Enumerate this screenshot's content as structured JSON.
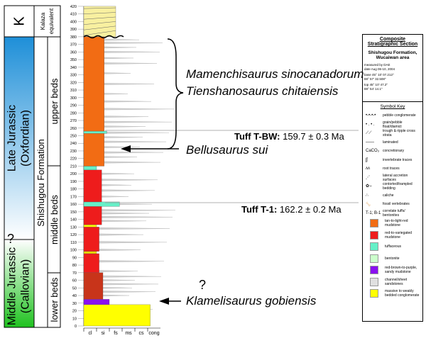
{
  "periods": [
    {
      "label": "K",
      "color_top": "#ffffff",
      "color_bottom": "#ffffff"
    },
    {
      "label": "Late Jurassic",
      "sub": "(Oxfordian)",
      "color_top": "#1e8fd8",
      "color_bottom": "#ffffff"
    },
    {
      "label": "Middle Jurassic",
      "sub": "(Callovian)",
      "query": "?",
      "color_top": "#ffffff",
      "color_bottom": "#1fc21f"
    }
  ],
  "formation": {
    "label": "Shishugou Formation",
    "kalaza": "Kalaza",
    "kalaza2": "equivalent"
  },
  "beds": [
    "upper beds",
    "middle beds",
    "lower beds"
  ],
  "scale": {
    "min": 0,
    "max": 420,
    "step": 10,
    "unit": "m"
  },
  "grain_sizes": [
    "cl",
    "si",
    "fs",
    "ms",
    "cs",
    "cong"
  ],
  "layers": [
    {
      "from": 0,
      "to": 28,
      "lith": "conglomerate",
      "color": "#ffff00",
      "grain": 5.2
    },
    {
      "from": 28,
      "to": 35,
      "lith": "red-brown-to-purple sandy mudstone",
      "color": "#8a10f0",
      "grain": 2.0
    },
    {
      "from": 35,
      "to": 70,
      "lith": "red-brown mudstone",
      "color": "#c8341a",
      "grain": 1.5
    },
    {
      "from": 70,
      "to": 95,
      "lith": "red-to-variegated mudstone",
      "color": "#ee1c1c",
      "grain": 1.2
    },
    {
      "from": 95,
      "to": 98,
      "lith": "conglomerate",
      "color": "#e8d800",
      "grain": 1.0
    },
    {
      "from": 98,
      "to": 130,
      "lith": "red-to-variegated mudstone",
      "color": "#ee1c1c",
      "grain": 1.2
    },
    {
      "from": 130,
      "to": 133,
      "lith": "conglomerate",
      "color": "#ffff00",
      "grain": 1.0
    },
    {
      "from": 133,
      "to": 157,
      "lith": "red-to-variegated mudstone",
      "color": "#ee1c1c",
      "grain": 1.4
    },
    {
      "from": 157,
      "to": 163,
      "lith": "tuffaceous",
      "color": "#66f0c8",
      "grain": 2.8
    },
    {
      "from": 163,
      "to": 205,
      "lith": "red-to-variegated mudstone",
      "color": "#ee1c1c",
      "grain": 1.4
    },
    {
      "from": 205,
      "to": 210,
      "lith": "tuffaceous",
      "color": "#66f0c8",
      "grain": 1.0
    },
    {
      "from": 210,
      "to": 253,
      "lith": "tan-to-light-red mudstone",
      "color": "#f26c14",
      "grain": 1.6
    },
    {
      "from": 253,
      "to": 256,
      "lith": "tuffaceous",
      "color": "#66f0c8",
      "grain": 1.8
    },
    {
      "from": 256,
      "to": 380,
      "lith": "tan-to-light-red mudstone",
      "color": "#f26c14",
      "grain": 1.6
    },
    {
      "from": 380,
      "to": 420,
      "lith": "Kalaza equivalent",
      "color": "#f8f0a0",
      "grain": 2.5
    }
  ],
  "sand_lenses": [
    15,
    22,
    40,
    45,
    50,
    55,
    60,
    65,
    72,
    85,
    100,
    110,
    120,
    128,
    138,
    143,
    148,
    152,
    160,
    170,
    178,
    185,
    192,
    200,
    215,
    222,
    228,
    235,
    242,
    248,
    254,
    262,
    268,
    275,
    285,
    295,
    305,
    318,
    332,
    345,
    352,
    360,
    366,
    372,
    376
  ],
  "annotations": {
    "taxon1": "Mamenchisaurus sinocanadorum",
    "taxon2": "Tienshanosaurus chitaiensis",
    "taxon3": "Bellusaurus sui",
    "taxon4": "Klamelisaurus gobiensis",
    "query": "?",
    "tuff1_name": "Tuff T-BW:",
    "tuff1_age": " 159.7 ± 0.3 Ma",
    "tuff1_level": 253,
    "tuff2_name": "Tuff T-1:",
    "tuff2_age": " 162.2 ± 0.2 Ma",
    "tuff2_level": 160
  },
  "legend": {
    "title1": "Composite",
    "title2": "Stratigraphic Section",
    "subtitle1": "Shishugou Formation,",
    "subtitle2": "Wucaiwan area",
    "measured": "measured by   DAE",
    "date": "date   Aug 06-10, 2004",
    "base1": "base   45° 10' 07.212\"",
    "base2": "          88° 57' 32.508\"",
    "top1": "top    45° 10' 47.2\"",
    "top2": "          88° 54' 14.1\"",
    "key_title": "Symbol Key",
    "symbols": [
      {
        "sym": "•-•-•-•",
        "label": "pebble conglomerate"
      },
      {
        "sym": "• . • .",
        "label": "grain/pebble float/diamict"
      },
      {
        "sym": "⟋⟋",
        "label": "trough & ripple cross strata"
      },
      {
        "sym": "——",
        "label": "laminated"
      },
      {
        "sym": "CaCO₃",
        "label": "concretionary"
      },
      {
        "sym": "ʃʃ",
        "label": "invertebrate traces"
      },
      {
        "sym": "ᴧᴧ",
        "label": "root traces"
      },
      {
        "sym": "⋰",
        "label": "lateral accretion surfaces"
      },
      {
        "sym": "✿⌣",
        "label": "contorted/trampled bedding"
      },
      {
        "sym": "∴",
        "label": "caliche"
      },
      {
        "sym": "🦴",
        "label": "fossil vertebrates"
      },
      {
        "sym": "T-1; B-1",
        "label": "correlate tuffs/ bentonites"
      }
    ],
    "swatches": [
      {
        "color": "#f26c14",
        "label": "tan-to-light-red mudstone"
      },
      {
        "color": "#ee1c1c",
        "label": "red-to-variegated mudstone"
      },
      {
        "color": "#66f0c8",
        "label": "tuffaceous"
      },
      {
        "color": "#ccffcc",
        "label": "bentonite"
      },
      {
        "color": "#8a10f0",
        "label": "red-brown-to-purple, sandy mudstone"
      },
      {
        "color": "#e0e0e0",
        "label": "channel/sheet sandstones"
      },
      {
        "color": "#ffff00",
        "label": "massive to weakly bedded conglomerate"
      }
    ]
  }
}
